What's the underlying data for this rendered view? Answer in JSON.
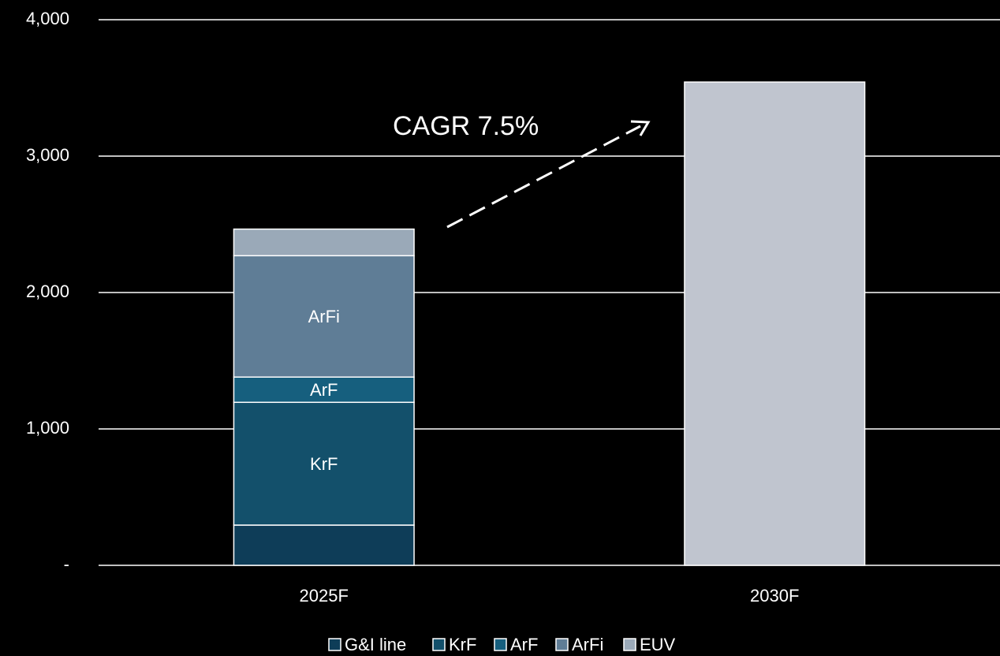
{
  "chart_data": {
    "type": "stacked_bar",
    "categories": [
      "2025F",
      "2030F"
    ],
    "series": [
      {
        "name": "G&I line",
        "color": "#0e3d58",
        "values": [
          295,
          null
        ]
      },
      {
        "name": "KrF",
        "color": "#13506b",
        "values": [
          900,
          null
        ]
      },
      {
        "name": "ArF",
        "color": "#165f7e",
        "values": [
          185,
          null
        ]
      },
      {
        "name": "ArFi",
        "color": "#5f7d96",
        "values": [
          890,
          null
        ]
      },
      {
        "name": "EUV",
        "color": "#9aa9b8",
        "values": [
          195,
          3543
        ],
        "colors": [
          "#9aa9b8",
          "#c0c5cf"
        ]
      }
    ],
    "ylim": [
      0,
      4000
    ],
    "yticks": [
      {
        "value": 0,
        "label": "-"
      },
      {
        "value": 1000,
        "label": "1,000"
      },
      {
        "value": 2000,
        "label": "2,000"
      },
      {
        "value": 3000,
        "label": "3,000"
      },
      {
        "value": 4000,
        "label": "4,000"
      }
    ],
    "grid": true,
    "annotation": "CAGR 7.5%",
    "legend": "bottom"
  }
}
